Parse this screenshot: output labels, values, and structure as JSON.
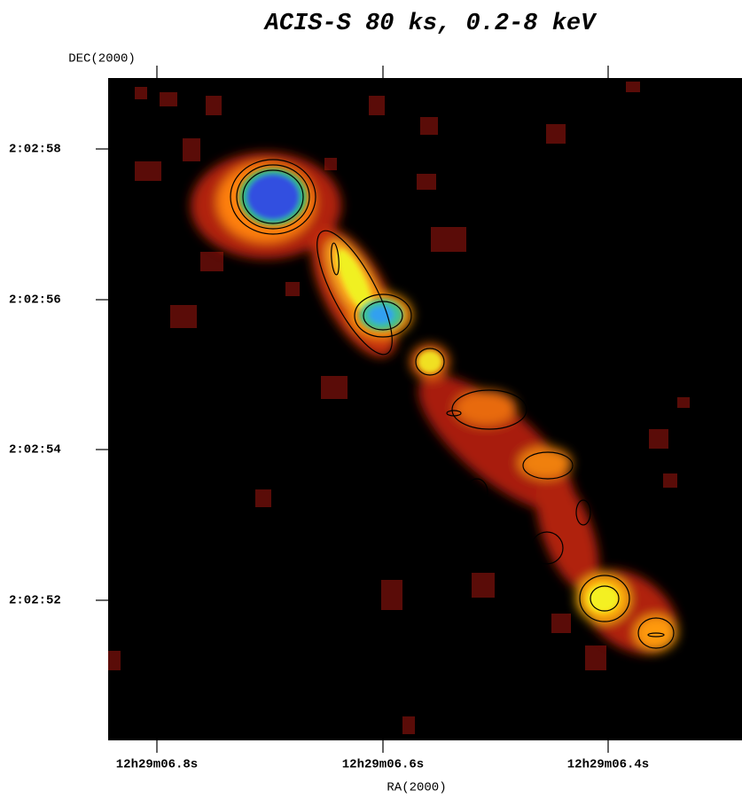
{
  "title": "ACIS-S 80 ks, 0.2-8 keV",
  "y_axis": {
    "label": "DEC(2000)",
    "ticks": [
      "2:02:58",
      "2:02:56",
      "2:02:54",
      "2:02:52"
    ]
  },
  "x_axis": {
    "label": "RA(2000)",
    "ticks": [
      "12h29m06.8s",
      "12h29m06.6s",
      "12h29m06.4s"
    ]
  }
}
